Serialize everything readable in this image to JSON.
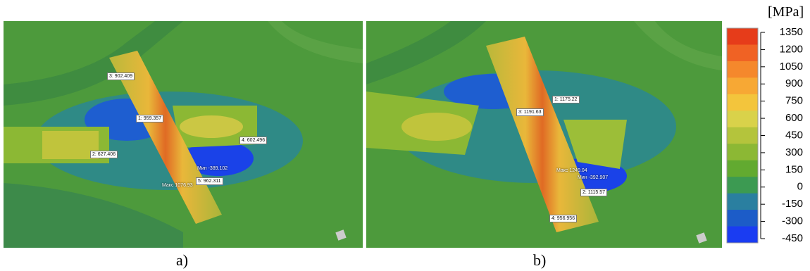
{
  "panels": [
    {
      "label": "a)",
      "probes": [
        "3: 902.409",
        "1: 959.357",
        "2: 627.406",
        "4: 602.496",
        "5: 962.311"
      ],
      "max": "Макс 1076.93",
      "min": "Мин -389.102"
    },
    {
      "label": "b)",
      "probes": [
        "1: 1175.22",
        "3: 1191.63",
        "2: 1115.57",
        "4: 956.956"
      ],
      "max": "Макс 1249.04",
      "min": "Мин -392.907"
    }
  ],
  "colorbar": {
    "unit": "[MPa]",
    "ticks": [
      1350,
      1200,
      1050,
      900,
      750,
      600,
      450,
      300,
      150,
      0,
      -150,
      -300,
      -450
    ],
    "colors": [
      "#e63c1a",
      "#f06224",
      "#f5882c",
      "#f7a834",
      "#f3c53c",
      "#d9d24a",
      "#b4c43c",
      "#8cb834",
      "#62aa30",
      "#3c9a52",
      "#2a7fa0",
      "#1c5cc8",
      "#1a3cf2"
    ]
  }
}
